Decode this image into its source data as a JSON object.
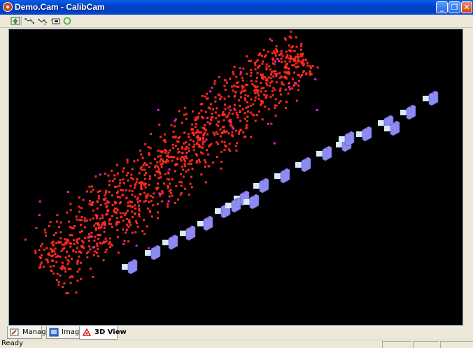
{
  "window": {
    "title": "Demo.Cam - CalibCam",
    "icon": "calibcam-app-icon",
    "controls": [
      "minimize",
      "maximize",
      "close"
    ]
  },
  "toolbar": {
    "buttons": [
      {
        "name": "import-icon"
      },
      {
        "name": "measure-tool-1-icon"
      },
      {
        "name": "measure-tool-2-icon"
      },
      {
        "name": "camera-view-icon"
      },
      {
        "name": "circle-select-icon"
      }
    ]
  },
  "view3d": {
    "background": "#000000",
    "point_color": "#FF2A1F",
    "control_point_color": "#E020E0",
    "camera_color": "#8C8CF0",
    "camera_lens_color": "#D8E8F8"
  },
  "tabs": [
    {
      "label": "Manager",
      "icon": "manager-icon",
      "active": false
    },
    {
      "label": "Images",
      "icon": "images-icon",
      "active": false
    },
    {
      "label": "3D View",
      "icon": "3d-view-icon",
      "active": true
    }
  ],
  "status": {
    "text": "Ready"
  }
}
